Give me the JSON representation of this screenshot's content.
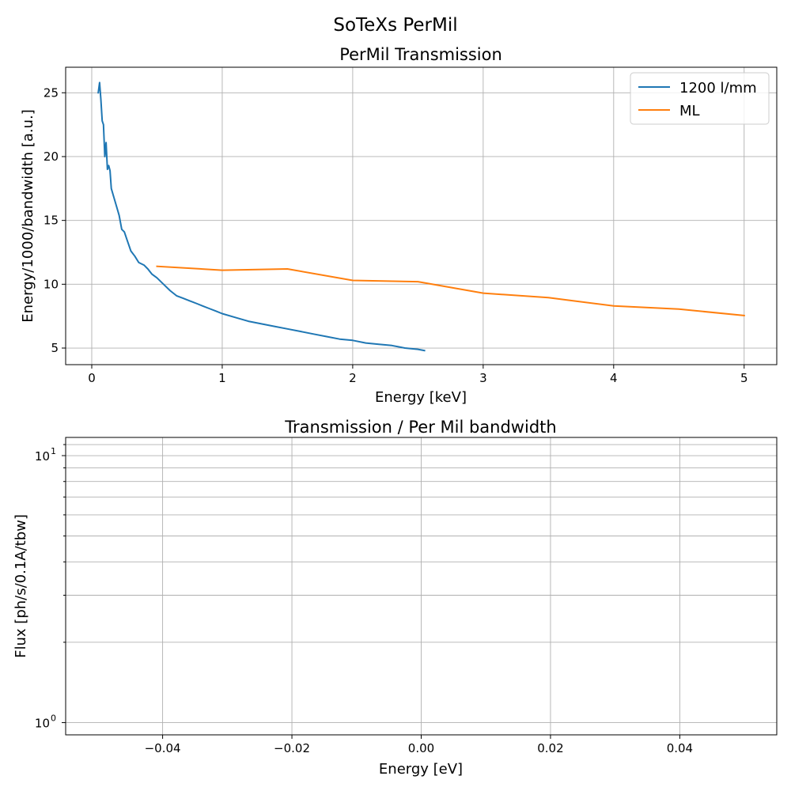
{
  "figure": {
    "suptitle": "SoTeXs PerMil"
  },
  "chart_data": [
    {
      "type": "line",
      "title": "PerMil Transmission",
      "xlabel": "Energy [keV]",
      "ylabel": "Energy/1000/bandwidth [a.u.]",
      "xlim": [
        -0.2,
        5.25
      ],
      "ylim": [
        3.7,
        27.0
      ],
      "xticks": [
        0,
        1,
        2,
        3,
        4,
        5
      ],
      "yticks": [
        5,
        10,
        15,
        20,
        25
      ],
      "grid": true,
      "legend": "top-right",
      "series": [
        {
          "name": "1200 l/mm",
          "color": "#1f77b4",
          "x": [
            0.05,
            0.06,
            0.07,
            0.08,
            0.09,
            0.1,
            0.11,
            0.12,
            0.13,
            0.14,
            0.15,
            0.17,
            0.19,
            0.21,
            0.23,
            0.25,
            0.27,
            0.3,
            0.33,
            0.36,
            0.4,
            0.43,
            0.46,
            0.5,
            0.55,
            0.6,
            0.65,
            0.7,
            0.75,
            0.8,
            0.85,
            0.9,
            0.95,
            1.0,
            1.1,
            1.2,
            1.3,
            1.4,
            1.5,
            1.6,
            1.7,
            1.8,
            1.9,
            2.0,
            2.1,
            2.2,
            2.3,
            2.4,
            2.5,
            2.55
          ],
          "y": [
            25.0,
            25.8,
            24.5,
            22.8,
            22.5,
            20.0,
            21.1,
            19.0,
            19.3,
            18.9,
            17.5,
            16.8,
            16.1,
            15.4,
            14.3,
            14.1,
            13.5,
            12.6,
            12.2,
            11.7,
            11.5,
            11.2,
            10.8,
            10.5,
            10.0,
            9.5,
            9.1,
            8.9,
            8.7,
            8.5,
            8.3,
            8.1,
            7.9,
            7.7,
            7.4,
            7.1,
            6.9,
            6.7,
            6.5,
            6.3,
            6.1,
            5.9,
            5.7,
            5.6,
            5.4,
            5.3,
            5.2,
            5.0,
            4.9,
            4.8
          ]
        },
        {
          "name": "ML",
          "color": "#ff7f0e",
          "x": [
            0.5,
            1.0,
            1.5,
            2.0,
            2.5,
            3.0,
            3.5,
            4.0,
            4.5,
            5.0
          ],
          "y": [
            11.4,
            11.1,
            11.2,
            10.3,
            10.2,
            9.3,
            8.95,
            8.3,
            8.05,
            7.55
          ]
        }
      ]
    },
    {
      "type": "line",
      "title": "Transmission / Per Mil bandwidth",
      "xlabel": "Energy [eV]",
      "ylabel": "Flux [ph/s/0.1A/tbw]",
      "xlim": [
        -0.055,
        0.055
      ],
      "ylim": [
        0.9,
        11.7
      ],
      "yscale": "log",
      "xticks": [
        -0.04,
        -0.02,
        0.0,
        0.02,
        0.04
      ],
      "xtick_labels": [
        "−0.04",
        "−0.02",
        "0.00",
        "0.02",
        "0.04"
      ],
      "ytick_major": [
        1,
        10
      ],
      "ytick_labels": [
        "10",
        "10"
      ],
      "ytick_exponents": [
        "0",
        "1"
      ],
      "ytick_minor": [
        2,
        3,
        4,
        5,
        6,
        7,
        8,
        9,
        11
      ],
      "grid": true,
      "series": []
    }
  ]
}
